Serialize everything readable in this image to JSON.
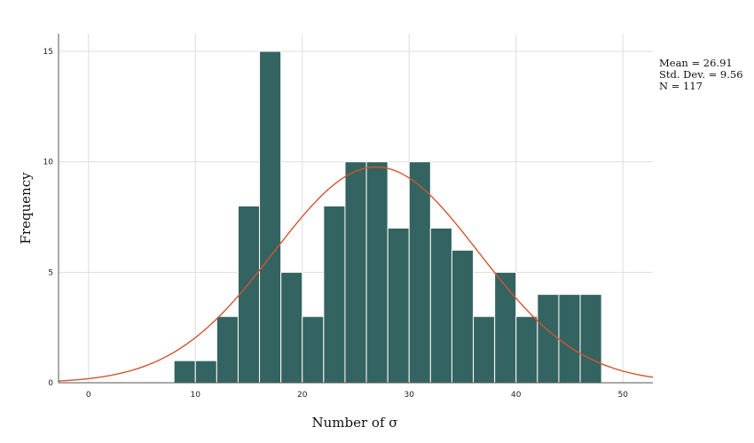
{
  "chart_data": {
    "type": "bar",
    "subtype": "histogram",
    "xlabel": "Number of σ",
    "ylabel": "Frequency",
    "xlim": [
      -2.8,
      52.8
    ],
    "ylim": [
      0,
      15.8
    ],
    "x_ticks": [
      0,
      10,
      20,
      30,
      40,
      50
    ],
    "y_ticks": [
      0,
      5,
      10,
      15
    ],
    "grid": true,
    "bin_width": 2,
    "bins": [
      {
        "x0": 8,
        "x1": 10,
        "count": 1
      },
      {
        "x0": 10,
        "x1": 12,
        "count": 1
      },
      {
        "x0": 12,
        "x1": 14,
        "count": 3
      },
      {
        "x0": 14,
        "x1": 16,
        "count": 8
      },
      {
        "x0": 16,
        "x1": 18,
        "count": 15
      },
      {
        "x0": 18,
        "x1": 20,
        "count": 5
      },
      {
        "x0": 20,
        "x1": 22,
        "count": 3
      },
      {
        "x0": 22,
        "x1": 24,
        "count": 8
      },
      {
        "x0": 24,
        "x1": 26,
        "count": 10
      },
      {
        "x0": 26,
        "x1": 28,
        "count": 10
      },
      {
        "x0": 28,
        "x1": 30,
        "count": 7
      },
      {
        "x0": 30,
        "x1": 32,
        "count": 10
      },
      {
        "x0": 32,
        "x1": 34,
        "count": 7
      },
      {
        "x0": 34,
        "x1": 36,
        "count": 6
      },
      {
        "x0": 36,
        "x1": 38,
        "count": 3
      },
      {
        "x0": 38,
        "x1": 40,
        "count": 5
      },
      {
        "x0": 40,
        "x1": 42,
        "count": 3
      },
      {
        "x0": 42,
        "x1": 44,
        "count": 4
      },
      {
        "x0": 44,
        "x1": 46,
        "count": 4
      },
      {
        "x0": 46,
        "x1": 48,
        "count": 4
      }
    ],
    "normal_curve": {
      "mean": 26.91,
      "std": 9.56,
      "n": 117
    },
    "stats": {
      "mean_label": "Mean = 26.91",
      "std_label": "Std. Dev. = 9.56",
      "n_label": "N = 117"
    },
    "colors": {
      "bar": "#336461",
      "curve": "#d2552f",
      "grid": "#dedede",
      "axis": "#555555"
    }
  }
}
